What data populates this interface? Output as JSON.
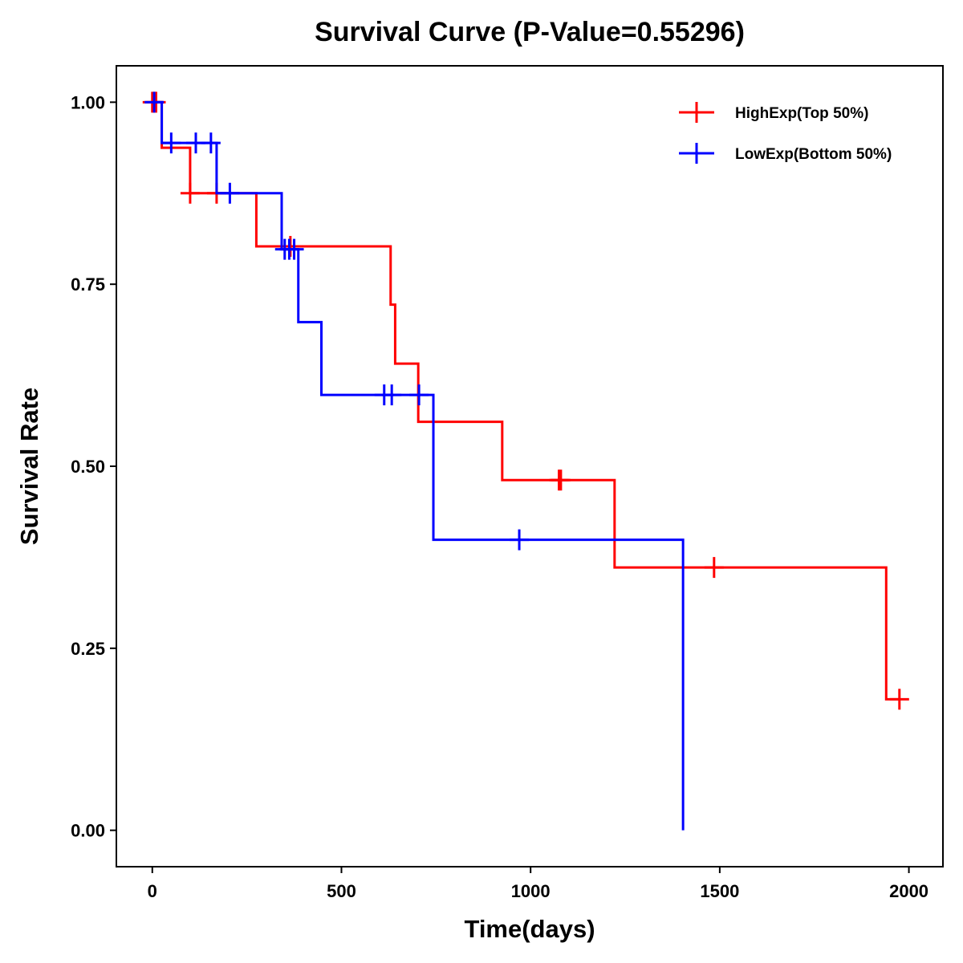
{
  "chart_data": {
    "type": "line",
    "subtype": "kaplan-meier",
    "title": "Survival Curve (P-Value=0.55296)",
    "xlabel": "Time(days)",
    "ylabel": "Survival Rate",
    "xlim": [
      -95,
      2090
    ],
    "ylim": [
      -0.05,
      1.05
    ],
    "xticks": [
      0,
      500,
      1000,
      1500,
      2000
    ],
    "xtick_labels": [
      "0",
      "500",
      "1000",
      "1500",
      "2000"
    ],
    "yticks": [
      0,
      0.25,
      0.5,
      0.75,
      1
    ],
    "ytick_labels": [
      "0.00",
      "0.25",
      "0.50",
      "0.75",
      "1.00"
    ],
    "legend_position": "top-right",
    "series": [
      {
        "name": "HighExp(Top 50%)",
        "color": "#FF0000",
        "steps": [
          [
            0,
            1.0
          ],
          [
            25,
            0.9375
          ],
          [
            100,
            0.875
          ],
          [
            275,
            0.802
          ],
          [
            630,
            0.722
          ],
          [
            642,
            0.641
          ],
          [
            703,
            0.561
          ],
          [
            925,
            0.481
          ],
          [
            1222,
            0.361
          ],
          [
            1940,
            0.18
          ],
          [
            1975,
            0.18
          ]
        ],
        "censored": [
          [
            0,
            1.0
          ],
          [
            5,
            1.0
          ],
          [
            10,
            1.0
          ],
          [
            100,
            0.875
          ],
          [
            170,
            0.875
          ],
          [
            365,
            0.802
          ],
          [
            1075,
            0.481
          ],
          [
            1080,
            0.481
          ],
          [
            1485,
            0.361
          ],
          [
            1975,
            0.18
          ]
        ]
      },
      {
        "name": "LowExp(Bottom 50%)",
        "color": "#0000FF",
        "steps": [
          [
            0,
            1.0
          ],
          [
            25,
            0.944
          ],
          [
            170,
            0.875
          ],
          [
            342,
            0.798
          ],
          [
            386,
            0.698
          ],
          [
            447,
            0.598
          ],
          [
            743,
            0.399
          ],
          [
            1403,
            0.0
          ],
          [
            1403,
            0.0
          ]
        ],
        "censored": [
          [
            5,
            1.0
          ],
          [
            50,
            0.944
          ],
          [
            115,
            0.944
          ],
          [
            155,
            0.944
          ],
          [
            205,
            0.875
          ],
          [
            350,
            0.798
          ],
          [
            362,
            0.798
          ],
          [
            375,
            0.798
          ],
          [
            613,
            0.598
          ],
          [
            633,
            0.598
          ],
          [
            705,
            0.598
          ],
          [
            970,
            0.399
          ]
        ]
      }
    ]
  }
}
